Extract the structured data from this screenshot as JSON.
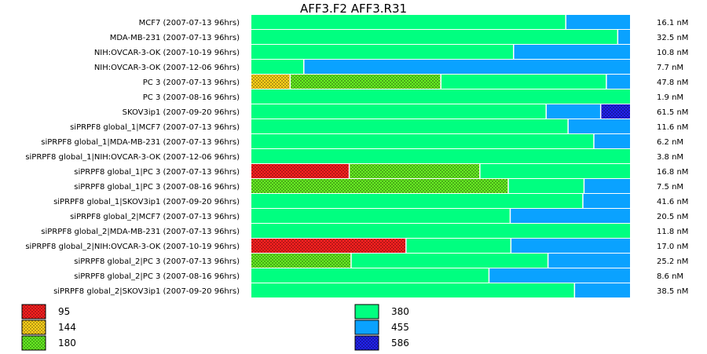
{
  "chart_data": {
    "type": "bar",
    "stacked": true,
    "orientation": "horizontal",
    "title": "AFF3.F2 AFF3.R31",
    "rows": [
      {
        "label": "MCF7 (2007-07-13 96hrs)",
        "conc": "16.1 nM",
        "segments": [
          {
            "cat": "380",
            "frac": 0.832
          },
          {
            "cat": "455",
            "frac": 0.168
          }
        ]
      },
      {
        "label": "MDA-MB-231 (2007-07-13 96hrs)",
        "conc": "32.5 nM",
        "segments": [
          {
            "cat": "380",
            "frac": 0.969
          },
          {
            "cat": "455",
            "frac": 0.031
          }
        ]
      },
      {
        "label": "NIH:OVCAR-3-OK (2007-10-19 96hrs)",
        "conc": "10.8 nM",
        "segments": [
          {
            "cat": "380",
            "frac": 0.694
          },
          {
            "cat": "455",
            "frac": 0.306
          }
        ]
      },
      {
        "label": "NIH:OVCAR-3-OK (2007-12-06 96hrs)",
        "conc": "7.7 nM",
        "segments": [
          {
            "cat": "380",
            "frac": 0.14
          },
          {
            "cat": "455",
            "frac": 0.86
          }
        ]
      },
      {
        "label": "PC 3 (2007-07-13 96hrs)",
        "conc": "47.8 nM",
        "segments": [
          {
            "cat": "144",
            "frac": 0.104
          },
          {
            "cat": "180",
            "frac": 0.398
          },
          {
            "cat": "380",
            "frac": 0.437
          },
          {
            "cat": "455",
            "frac": 0.061
          }
        ]
      },
      {
        "label": "PC 3 (2007-08-16 96hrs)",
        "conc": "1.9 nM",
        "segments": [
          {
            "cat": "380",
            "frac": 1.0
          }
        ]
      },
      {
        "label": "SKOV3ip1 (2007-09-20 96hrs)",
        "conc": "61.5 nM",
        "segments": [
          {
            "cat": "380",
            "frac": 0.78
          },
          {
            "cat": "455",
            "frac": 0.144
          },
          {
            "cat": "586",
            "frac": 0.076
          }
        ]
      },
      {
        "label": "siPRPF8 global_1|MCF7 (2007-07-13 96hrs)",
        "conc": "11.6 nM",
        "segments": [
          {
            "cat": "380",
            "frac": 0.838
          },
          {
            "cat": "455",
            "frac": 0.162
          }
        ]
      },
      {
        "label": "siPRPF8 global_1|MDA-MB-231 (2007-07-13 96hrs)",
        "conc": "6.2 nM",
        "segments": [
          {
            "cat": "380",
            "frac": 0.906
          },
          {
            "cat": "455",
            "frac": 0.094
          }
        ]
      },
      {
        "label": "siPRPF8 global_1|NIH:OVCAR-3-OK (2007-12-06 96hrs)",
        "conc": "3.8 nM",
        "segments": [
          {
            "cat": "380",
            "frac": 1.0
          }
        ]
      },
      {
        "label": "siPRPF8 global_1|PC 3 (2007-07-13 96hrs)",
        "conc": "16.8 nM",
        "segments": [
          {
            "cat": "95",
            "frac": 0.26
          },
          {
            "cat": "180",
            "frac": 0.345
          },
          {
            "cat": "380",
            "frac": 0.395
          }
        ]
      },
      {
        "label": "siPRPF8 global_1|PC 3 (2007-08-16 96hrs)",
        "conc": "7.5 nM",
        "segments": [
          {
            "cat": "180",
            "frac": 0.68
          },
          {
            "cat": "380",
            "frac": 0.2
          },
          {
            "cat": "455",
            "frac": 0.12
          }
        ]
      },
      {
        "label": "siPRPF8 global_1|SKOV3ip1 (2007-09-20 96hrs)",
        "conc": "41.6 nM",
        "segments": [
          {
            "cat": "380",
            "frac": 0.877
          },
          {
            "cat": "455",
            "frac": 0.123
          }
        ]
      },
      {
        "label": "siPRPF8 global_2|MCF7 (2007-07-13 96hrs)",
        "conc": "20.5 nM",
        "segments": [
          {
            "cat": "380",
            "frac": 0.685
          },
          {
            "cat": "455",
            "frac": 0.315
          }
        ]
      },
      {
        "label": "siPRPF8 global_2|MDA-MB-231 (2007-07-13 96hrs)",
        "conc": "11.8 nM",
        "segments": [
          {
            "cat": "380",
            "frac": 1.0
          }
        ]
      },
      {
        "label": "siPRPF8 global_2|NIH:OVCAR-3-OK (2007-10-19 96hrs)",
        "conc": "17.0 nM",
        "segments": [
          {
            "cat": "95",
            "frac": 0.41
          },
          {
            "cat": "380",
            "frac": 0.277
          },
          {
            "cat": "455",
            "frac": 0.313
          }
        ]
      },
      {
        "label": "siPRPF8 global_2|PC 3 (2007-07-13 96hrs)",
        "conc": "25.2 nM",
        "segments": [
          {
            "cat": "180",
            "frac": 0.265
          },
          {
            "cat": "380",
            "frac": 0.52
          },
          {
            "cat": "455",
            "frac": 0.215
          }
        ]
      },
      {
        "label": "siPRPF8 global_2|PC 3 (2007-08-16 96hrs)",
        "conc": "8.6 nM",
        "segments": [
          {
            "cat": "380",
            "frac": 0.629
          },
          {
            "cat": "455",
            "frac": 0.371
          }
        ]
      },
      {
        "label": "siPRPF8 global_2|SKOV3ip1 (2007-09-20 96hrs)",
        "conc": "38.5 nM",
        "segments": [
          {
            "cat": "380",
            "frac": 0.855
          },
          {
            "cat": "455",
            "frac": 0.145
          }
        ]
      }
    ],
    "legend": [
      {
        "label": "95",
        "color": "#ff2020",
        "pattern": true
      },
      {
        "label": "144",
        "color": "#ffd21a",
        "pattern": true
      },
      {
        "label": "180",
        "color": "#66ee22",
        "pattern": true
      },
      {
        "label": "380",
        "color": "#00ff80",
        "pattern": false
      },
      {
        "label": "455",
        "color": "#0aa2ff",
        "pattern": false
      },
      {
        "label": "586",
        "color": "#2222ee",
        "pattern": true
      }
    ],
    "legend_placement": "bottom",
    "grid": false
  }
}
